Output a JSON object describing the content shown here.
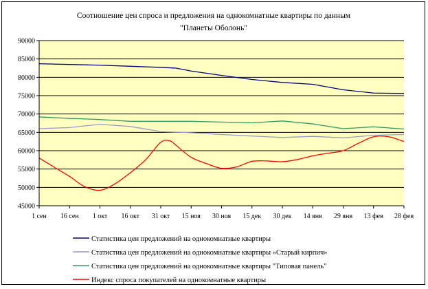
{
  "chart_data": {
    "type": "line",
    "title_lines": [
      "Соотношение цен спроса и предложения на однокомнатные квартиры по данным",
      "\"Планеты Оболонь\""
    ],
    "x_tick_labels": [
      "1 сен",
      "16 сен",
      "1 окт",
      "16 окт",
      "31 окт",
      "15 ноя",
      "30 ноя",
      "15 дек",
      "30 дек",
      "14 янв",
      "29 янв",
      "13 фев",
      "28 фев"
    ],
    "y_tick_labels": [
      "90000",
      "85000",
      "80000",
      "75000",
      "70000",
      "65000",
      "60000",
      "55000",
      "50000",
      "45000"
    ],
    "ylim": [
      45000,
      90000
    ],
    "y_step": 5000,
    "grid": "horizontal",
    "plot_background": "#ffffc0",
    "legend_position": "bottom",
    "series": [
      {
        "name": "Статистика цен предложений на однокомнатные квартиры",
        "color": "#000080",
        "points": [
          [
            0,
            83700
          ],
          [
            1,
            83500
          ],
          [
            2,
            83300
          ],
          [
            3,
            83000
          ],
          [
            4,
            82700
          ],
          [
            4.5,
            82500
          ],
          [
            5,
            81700
          ],
          [
            6,
            80500
          ],
          [
            7,
            79400
          ],
          [
            8,
            78600
          ],
          [
            9,
            78100
          ],
          [
            10,
            76600
          ],
          [
            11,
            75700
          ],
          [
            12,
            75600
          ]
        ]
      },
      {
        "name": "Статистика цен предложений на однокомнатные квартиры «Старый кирпич»",
        "color": "#9999cc",
        "points": [
          [
            0,
            66000
          ],
          [
            1,
            66300
          ],
          [
            2,
            67200
          ],
          [
            3,
            66600
          ],
          [
            4,
            65200
          ],
          [
            5,
            64900
          ],
          [
            6,
            64400
          ],
          [
            7,
            64000
          ],
          [
            8,
            63600
          ],
          [
            9,
            63900
          ],
          [
            10,
            63500
          ],
          [
            11,
            64200
          ],
          [
            12,
            64400
          ]
        ]
      },
      {
        "name": "Статистика цен предложений на однокомнатные квартиры \"Типовая панель\"",
        "color": "#339966",
        "points": [
          [
            0,
            69200
          ],
          [
            1,
            68800
          ],
          [
            2,
            68500
          ],
          [
            3,
            68000
          ],
          [
            4,
            68000
          ],
          [
            5,
            68000
          ],
          [
            6,
            67800
          ],
          [
            7,
            67600
          ],
          [
            8,
            68100
          ],
          [
            9,
            67300
          ],
          [
            10,
            66000
          ],
          [
            11,
            66500
          ],
          [
            12,
            65900
          ]
        ]
      },
      {
        "name": "Индекс спроса покупателей на однокомнатные квартиры",
        "color": "#ff0000",
        "points": [
          [
            0,
            58000
          ],
          [
            0.5,
            55500
          ],
          [
            1,
            53000
          ],
          [
            1.5,
            50200
          ],
          [
            2,
            49200
          ],
          [
            2.5,
            51000
          ],
          [
            3,
            54000
          ],
          [
            3.5,
            57500
          ],
          [
            4,
            62300
          ],
          [
            4.3,
            62700
          ],
          [
            4.5,
            61500
          ],
          [
            5,
            58200
          ],
          [
            5.5,
            56500
          ],
          [
            6,
            55200
          ],
          [
            6.5,
            55600
          ],
          [
            7,
            57100
          ],
          [
            7.5,
            57200
          ],
          [
            8,
            57000
          ],
          [
            8.5,
            57600
          ],
          [
            9,
            58600
          ],
          [
            9.5,
            59300
          ],
          [
            10,
            60000
          ],
          [
            10.5,
            62000
          ],
          [
            11,
            63800
          ],
          [
            11.5,
            63800
          ],
          [
            12,
            62500
          ]
        ]
      }
    ]
  }
}
